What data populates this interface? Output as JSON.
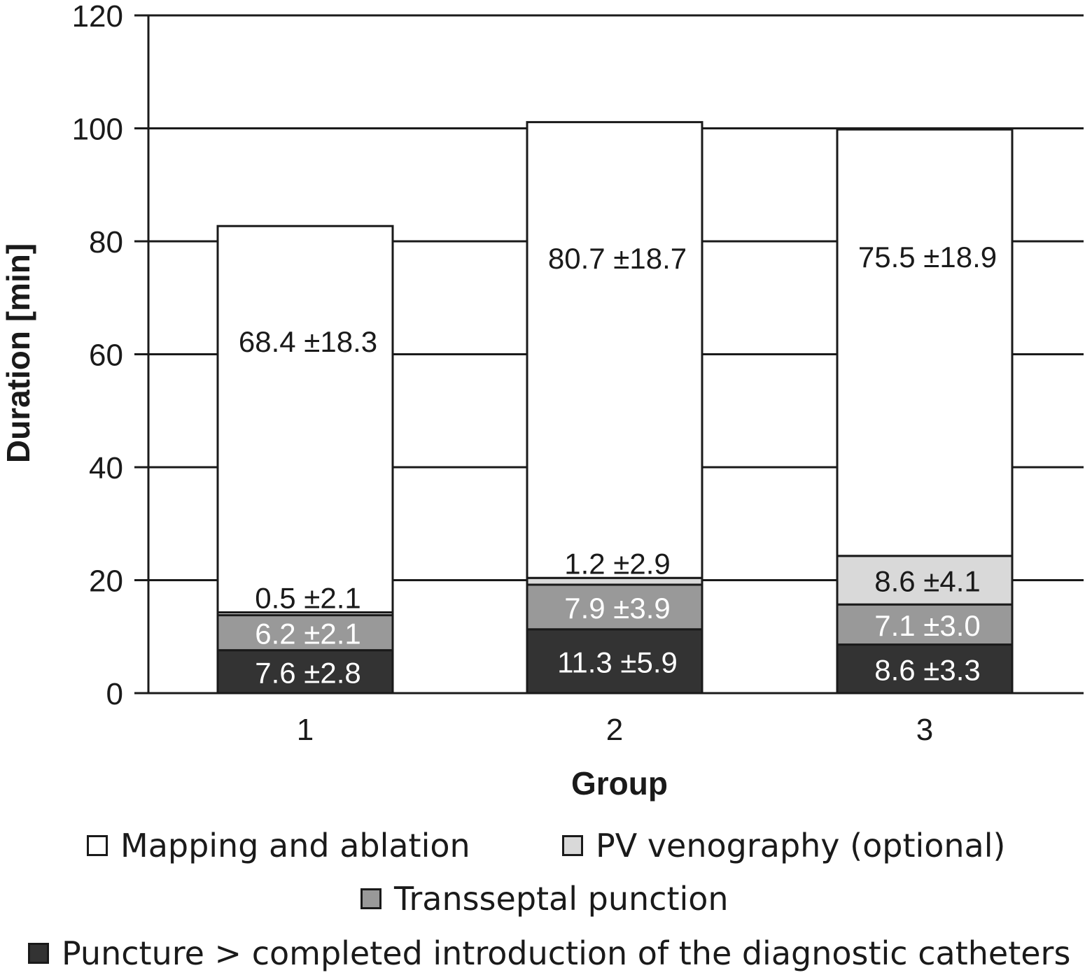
{
  "chart_data": {
    "type": "bar",
    "stacked": true,
    "categories": [
      "1",
      "2",
      "3"
    ],
    "xlabel": "Group",
    "ylabel": "Duration [min]",
    "ylim": [
      0,
      120
    ],
    "yticks": [
      "0",
      "20",
      "40",
      "60",
      "80",
      "100",
      "120"
    ],
    "grid": true,
    "legend_position": "bottom",
    "series": [
      {
        "name": "Puncture > completed introduction of the diagnostic catheters",
        "color": "#333333",
        "label_color": "#ffffff",
        "values": [
          7.6,
          11.3,
          8.6
        ],
        "labels": [
          "7.6 ±2.8",
          "11.3 ±5.9",
          "8.6 ±3.3"
        ]
      },
      {
        "name": "Transseptal punction",
        "color": "#999999",
        "label_color": "#ffffff",
        "values": [
          6.2,
          7.9,
          7.1
        ],
        "labels": [
          "6.2 ±2.1",
          "7.9 ±3.9",
          "7.1 ±3.0"
        ]
      },
      {
        "name": "PV venography (optional)",
        "color": "#d9d9d9",
        "label_color": "#1a1a1a",
        "values": [
          0.5,
          1.2,
          8.6
        ],
        "labels": [
          "0.5 ±2.1",
          "1.2 ±2.9",
          "8.6 ±4.1"
        ]
      },
      {
        "name": "Mapping and ablation",
        "color": "#ffffff",
        "label_color": "#1a1a1a",
        "values": [
          68.4,
          80.7,
          75.5
        ],
        "labels": [
          "68.4 ±18.3",
          "80.7 ±18.7",
          "75.5 ±18.9"
        ]
      }
    ]
  },
  "legend": {
    "items": [
      {
        "label": "Mapping and ablation",
        "color": "#ffffff"
      },
      {
        "label": "PV venography (optional)",
        "color": "#d9d9d9"
      },
      {
        "label": "Transseptal punction",
        "color": "#999999"
      },
      {
        "label": "Puncture > completed introduction of the diagnostic catheters",
        "color": "#333333"
      }
    ]
  }
}
